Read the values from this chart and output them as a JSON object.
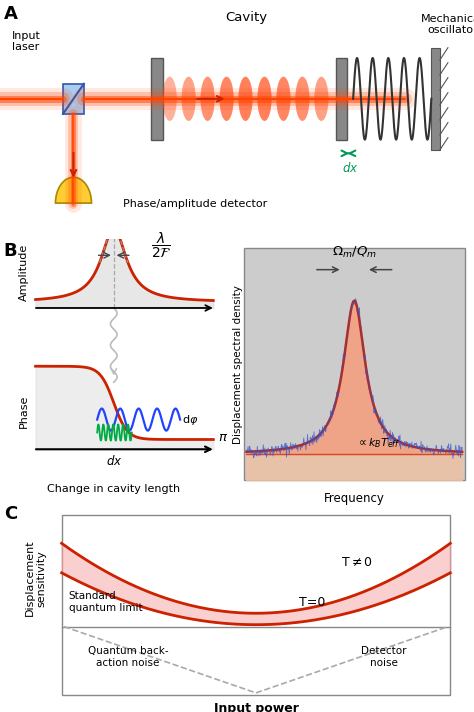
{
  "panel_A": {
    "label": "A",
    "texts": {
      "input_laser": "Input\nlaser",
      "cavity": "Cavity",
      "mechanical_oscillator": "Mechanical\noscillator",
      "phase_detector": "Phase/amplitude detector",
      "dx_label": "dx"
    },
    "colors": {
      "beam": "#cc3300",
      "mirror": "#808080",
      "dx_arrow": "#00aa55"
    }
  },
  "panel_B": {
    "label": "B",
    "left": {
      "amplitude_label": "Amplitude",
      "phase_label": "Phase",
      "xlabel": "Change in cavity length",
      "curve_color": "#cc2200"
    },
    "right": {
      "ylabel": "Displacement spectral density",
      "xlabel": "Frequency",
      "peak_color": "#f4a080",
      "peak_edge": "#cc2200",
      "noise_color": "#4466cc",
      "bg_color": "#d0d0d0"
    }
  },
  "panel_C": {
    "label": "C",
    "ylabel": "Displacement\nsensitivity",
    "xlabel": "Input power",
    "curve_color": "#cc2200",
    "dashed_color": "#aaaaaa"
  }
}
